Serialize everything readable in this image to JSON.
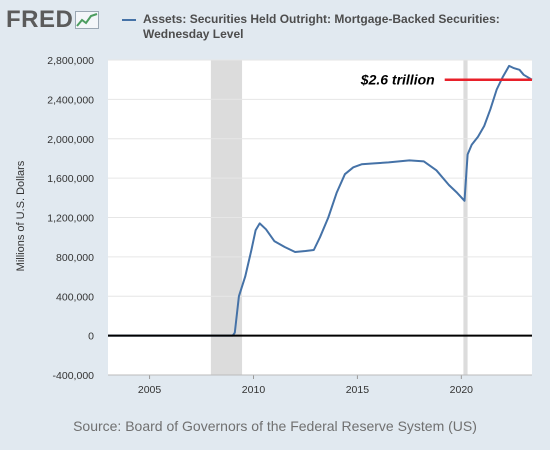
{
  "header": {
    "logo_text": "FRED",
    "logo_icon": "chart-line-icon",
    "series_title": "Assets: Securities Held Outright: Mortgage-Backed Securities: Wednesday Level"
  },
  "source": "Source: Board of Governors of the Federal Reserve System (US)",
  "colors": {
    "series": "#4572a7",
    "recession": "#dcdcdc",
    "annotation_line": "#e8202a",
    "zero_line": "#000000",
    "background": "#e1e9f0",
    "plot_bg": "#ffffff"
  },
  "chart_data": {
    "type": "line",
    "title": "Assets: Securities Held Outright: Mortgage-Backed Securities: Wednesday Level",
    "xlabel": "",
    "ylabel": "Millions of U.S. Dollars",
    "xlim": [
      2003.0,
      2023.4
    ],
    "ylim": [
      -400000,
      2800000
    ],
    "x_ticks": [
      2005,
      2010,
      2015,
      2020
    ],
    "x_tick_labels": [
      "2005",
      "2010",
      "2015",
      "2020"
    ],
    "y_ticks": [
      -400000,
      0,
      400000,
      800000,
      1200000,
      1600000,
      2000000,
      2400000,
      2800000
    ],
    "y_tick_labels": [
      "-400,000",
      "0",
      "400,000",
      "800,000",
      "1,200,000",
      "1,600,000",
      "2,000,000",
      "2,400,000",
      "2,800,000"
    ],
    "grid": "horizontal",
    "recessions": [
      [
        2007.95,
        2009.45
      ],
      [
        2020.1,
        2020.3
      ]
    ],
    "series": [
      {
        "x": [
          2003.0,
          2009.0,
          2009.1,
          2009.3,
          2009.6,
          2009.9,
          2010.1,
          2010.3,
          2010.6,
          2011.0,
          2011.5,
          2012.0,
          2012.5,
          2012.9,
          2013.2,
          2013.6,
          2014.0,
          2014.4,
          2014.8,
          2015.2,
          2015.8,
          2016.5,
          2017.5,
          2018.2,
          2018.8,
          2019.4,
          2019.8,
          2020.15,
          2020.3,
          2020.5,
          2020.8,
          2021.1,
          2021.4,
          2021.7,
          2022.0,
          2022.3,
          2022.5,
          2022.8,
          2023.0,
          2023.4
        ],
        "values": [
          0,
          0,
          30000,
          400000,
          600000,
          870000,
          1070000,
          1140000,
          1080000,
          960000,
          900000,
          850000,
          860000,
          870000,
          1000000,
          1200000,
          1450000,
          1640000,
          1710000,
          1740000,
          1750000,
          1760000,
          1780000,
          1770000,
          1680000,
          1530000,
          1450000,
          1370000,
          1840000,
          1940000,
          2020000,
          2130000,
          2300000,
          2500000,
          2630000,
          2740000,
          2720000,
          2700000,
          2650000,
          2600000
        ]
      }
    ],
    "annotation": {
      "text": "$2.6 trillion",
      "value": 2600000,
      "x_start": 2019.2,
      "x_end": 2023.4
    },
    "zero_line": true
  }
}
